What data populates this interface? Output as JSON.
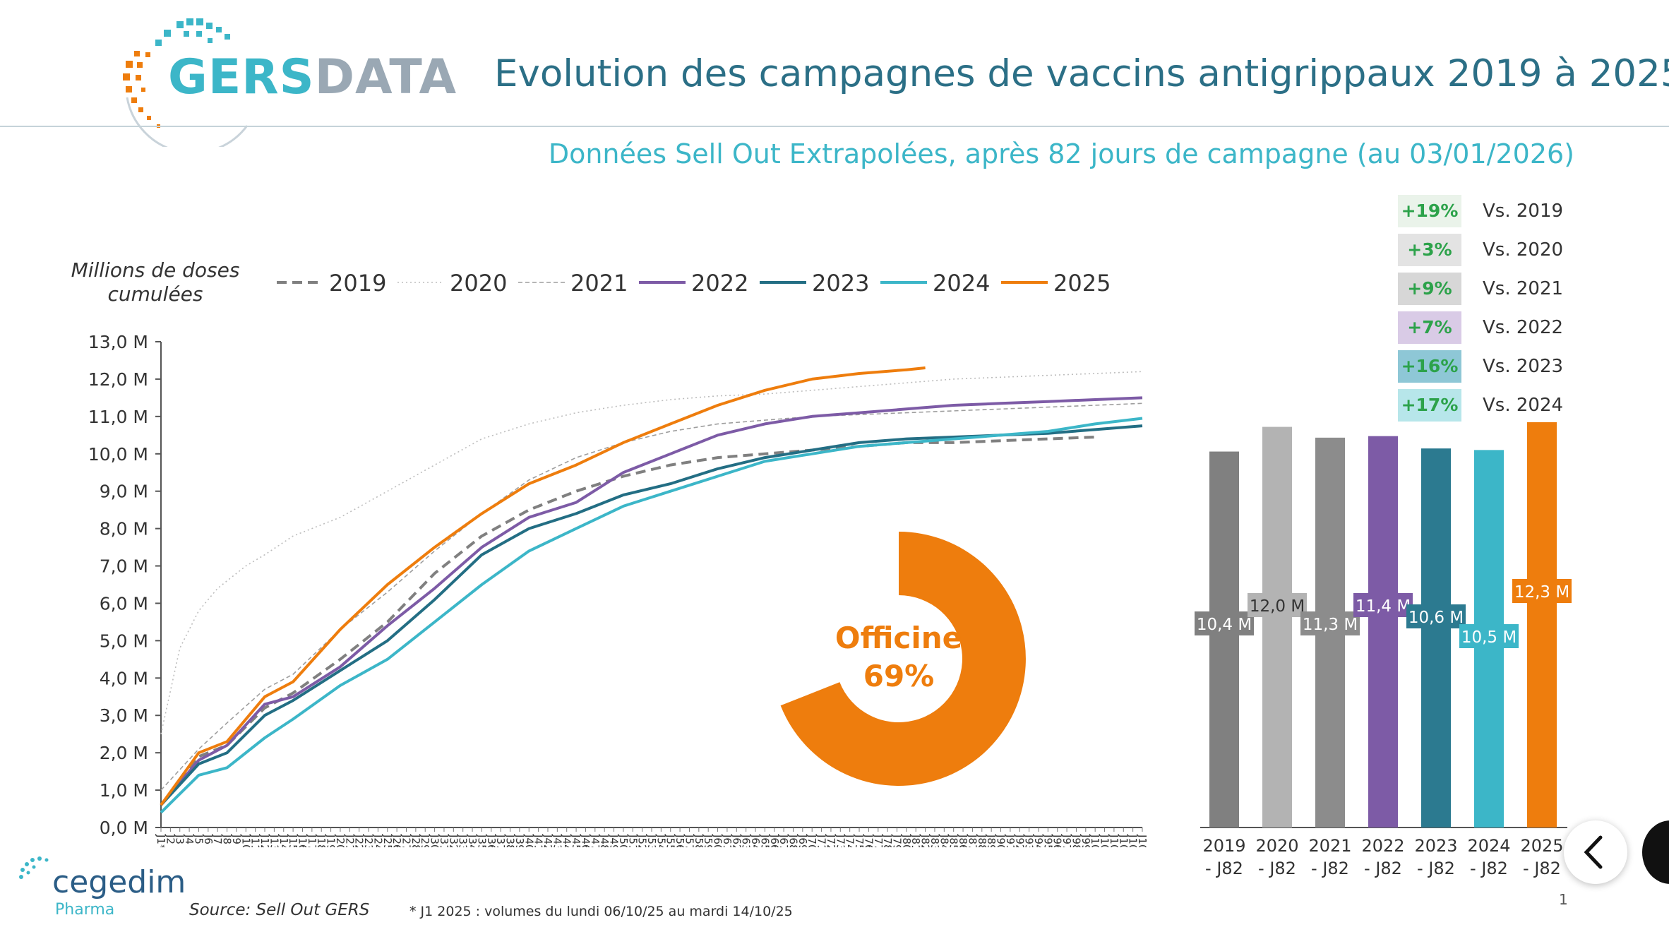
{
  "header": {
    "brand": "GERSDATA",
    "brand_part1": "GERS",
    "brand_part2": "DATA",
    "title": "Evolution des campagnes de vaccins antigrippaux 2019 à 2025",
    "subtitle": "Données Sell Out Extrapolées, après 82 jours de campagne (au 03/01/2026)"
  },
  "comparisons": [
    {
      "badge": "+19%",
      "label": "Vs. 2019",
      "color": "#eaf3ea"
    },
    {
      "badge": "+3%",
      "label": "Vs. 2020",
      "color": "#e3e3e3"
    },
    {
      "badge": "+9%",
      "label": "Vs. 2021",
      "color": "#d7d7d7"
    },
    {
      "badge": "+7%",
      "label": "Vs. 2022",
      "color": "#d9cbe6"
    },
    {
      "badge": "+16%",
      "label": "Vs. 2023",
      "color": "#8ec7d6"
    },
    {
      "badge": "+17%",
      "label": "Vs. 2024",
      "color": "#b7e6ea"
    }
  ],
  "donut": {
    "label": "Officine",
    "value_label": "69%",
    "value": 69,
    "color": "#ee7d0d"
  },
  "footer": {
    "source": "Source: Sell Out GERS",
    "note": "* J1 2025 : volumes du lundi 06/10/25 au mardi 14/10/25",
    "page": "1",
    "cegedim": "cegedim",
    "pharma": "Pharma"
  },
  "icons": [
    "gersdata-logo-icon",
    "cegedim-logo-icon",
    "chevron-left-icon"
  ],
  "chart_data": [
    {
      "type": "line",
      "ylabel": "Millions de doses cumulées",
      "ylim": [
        0,
        13
      ],
      "y_ticks": [
        "0,0 M",
        "1,0 M",
        "2,0 M",
        "3,0 M",
        "4,0 M",
        "5,0 M",
        "6,0 M",
        "7,0 M",
        "8,0 M",
        "9,0 M",
        "10,0 M",
        "11,0 M",
        "12,0 M",
        "13,0 M"
      ],
      "x_tick_first": "J1*",
      "x_tick_prefix": "J",
      "x_range": [
        1,
        105
      ],
      "series": [
        {
          "name": "2019",
          "color": "#808080",
          "dash": "long-dash",
          "points": [
            [
              1,
              0.6
            ],
            [
              5,
              1.9
            ],
            [
              8,
              2.2
            ],
            [
              12,
              3.2
            ],
            [
              15,
              3.6
            ],
            [
              20,
              4.5
            ],
            [
              25,
              5.5
            ],
            [
              30,
              6.8
            ],
            [
              35,
              7.8
            ],
            [
              40,
              8.5
            ],
            [
              45,
              9.0
            ],
            [
              50,
              9.4
            ],
            [
              55,
              9.7
            ],
            [
              60,
              9.9
            ],
            [
              65,
              10.0
            ],
            [
              70,
              10.1
            ],
            [
              75,
              10.2
            ],
            [
              80,
              10.3
            ],
            [
              85,
              10.3
            ],
            [
              90,
              10.35
            ],
            [
              95,
              10.4
            ],
            [
              100,
              10.45
            ]
          ]
        },
        {
          "name": "2020",
          "color": "#bdbdbd",
          "dash": "dot",
          "points": [
            [
              1,
              2.5
            ],
            [
              3,
              4.8
            ],
            [
              5,
              5.8
            ],
            [
              7,
              6.4
            ],
            [
              10,
              7.0
            ],
            [
              12,
              7.3
            ],
            [
              15,
              7.8
            ],
            [
              20,
              8.3
            ],
            [
              25,
              9.0
            ],
            [
              30,
              9.7
            ],
            [
              35,
              10.4
            ],
            [
              40,
              10.8
            ],
            [
              45,
              11.1
            ],
            [
              50,
              11.3
            ],
            [
              55,
              11.45
            ],
            [
              60,
              11.55
            ],
            [
              65,
              11.6
            ],
            [
              70,
              11.7
            ],
            [
              75,
              11.8
            ],
            [
              80,
              11.9
            ],
            [
              85,
              12.0
            ],
            [
              90,
              12.05
            ],
            [
              95,
              12.1
            ],
            [
              100,
              12.15
            ],
            [
              105,
              12.2
            ]
          ]
        },
        {
          "name": "2021",
          "color": "#9e9e9e",
          "dash": "dash",
          "points": [
            [
              1,
              1.0
            ],
            [
              5,
              2.1
            ],
            [
              8,
              2.8
            ],
            [
              12,
              3.7
            ],
            [
              15,
              4.1
            ],
            [
              20,
              5.3
            ],
            [
              25,
              6.3
            ],
            [
              30,
              7.4
            ],
            [
              35,
              8.4
            ],
            [
              40,
              9.3
            ],
            [
              45,
              9.9
            ],
            [
              50,
              10.3
            ],
            [
              55,
              10.6
            ],
            [
              60,
              10.8
            ],
            [
              65,
              10.9
            ],
            [
              70,
              11.0
            ],
            [
              75,
              11.05
            ],
            [
              80,
              11.1
            ],
            [
              85,
              11.15
            ],
            [
              90,
              11.2
            ],
            [
              95,
              11.25
            ],
            [
              100,
              11.3
            ],
            [
              105,
              11.35
            ]
          ]
        },
        {
          "name": "2022",
          "color": "#7d5ba6",
          "dash": "solid",
          "points": [
            [
              1,
              0.6
            ],
            [
              5,
              1.8
            ],
            [
              8,
              2.2
            ],
            [
              12,
              3.3
            ],
            [
              15,
              3.5
            ],
            [
              20,
              4.3
            ],
            [
              25,
              5.4
            ],
            [
              30,
              6.4
            ],
            [
              35,
              7.5
            ],
            [
              40,
              8.3
            ],
            [
              45,
              8.7
            ],
            [
              50,
              9.5
            ],
            [
              55,
              10.0
            ],
            [
              60,
              10.5
            ],
            [
              65,
              10.8
            ],
            [
              70,
              11.0
            ],
            [
              75,
              11.1
            ],
            [
              80,
              11.2
            ],
            [
              85,
              11.3
            ],
            [
              90,
              11.35
            ],
            [
              95,
              11.4
            ],
            [
              100,
              11.45
            ],
            [
              105,
              11.5
            ]
          ]
        },
        {
          "name": "2023",
          "color": "#236e84",
          "dash": "solid",
          "points": [
            [
              1,
              0.6
            ],
            [
              5,
              1.7
            ],
            [
              8,
              2.0
            ],
            [
              12,
              3.0
            ],
            [
              15,
              3.4
            ],
            [
              20,
              4.2
            ],
            [
              25,
              5.0
            ],
            [
              30,
              6.1
            ],
            [
              35,
              7.3
            ],
            [
              40,
              8.0
            ],
            [
              45,
              8.4
            ],
            [
              50,
              8.9
            ],
            [
              55,
              9.2
            ],
            [
              60,
              9.6
            ],
            [
              65,
              9.9
            ],
            [
              70,
              10.1
            ],
            [
              75,
              10.3
            ],
            [
              80,
              10.4
            ],
            [
              85,
              10.45
            ],
            [
              90,
              10.5
            ],
            [
              95,
              10.55
            ],
            [
              100,
              10.65
            ],
            [
              105,
              10.75
            ]
          ]
        },
        {
          "name": "2024",
          "color": "#3cb6c8",
          "dash": "solid",
          "points": [
            [
              1,
              0.4
            ],
            [
              5,
              1.4
            ],
            [
              8,
              1.6
            ],
            [
              12,
              2.4
            ],
            [
              15,
              2.9
            ],
            [
              20,
              3.8
            ],
            [
              25,
              4.5
            ],
            [
              30,
              5.5
            ],
            [
              35,
              6.5
            ],
            [
              40,
              7.4
            ],
            [
              45,
              8.0
            ],
            [
              50,
              8.6
            ],
            [
              55,
              9.0
            ],
            [
              60,
              9.4
            ],
            [
              65,
              9.8
            ],
            [
              70,
              10.0
            ],
            [
              75,
              10.2
            ],
            [
              80,
              10.3
            ],
            [
              85,
              10.4
            ],
            [
              90,
              10.5
            ],
            [
              95,
              10.6
            ],
            [
              100,
              10.8
            ],
            [
              105,
              10.95
            ]
          ]
        },
        {
          "name": "2025",
          "color": "#ee7d0d",
          "dash": "solid",
          "points": [
            [
              1,
              0.6
            ],
            [
              5,
              2.0
            ],
            [
              8,
              2.3
            ],
            [
              12,
              3.5
            ],
            [
              15,
              3.9
            ],
            [
              20,
              5.3
            ],
            [
              25,
              6.5
            ],
            [
              30,
              7.5
            ],
            [
              35,
              8.4
            ],
            [
              40,
              9.2
            ],
            [
              45,
              9.7
            ],
            [
              50,
              10.3
            ],
            [
              55,
              10.8
            ],
            [
              60,
              11.3
            ],
            [
              65,
              11.7
            ],
            [
              70,
              12.0
            ],
            [
              75,
              12.15
            ],
            [
              80,
              12.25
            ],
            [
              82,
              12.3
            ]
          ]
        }
      ]
    },
    {
      "type": "bar",
      "categories": [
        "2019 - J82",
        "2020 - J82",
        "2021 - J82",
        "2022 - J82",
        "2023 - J82",
        "2024 - J82",
        "2025 - J82"
      ],
      "cat_line1": [
        "2019",
        "2020",
        "2021",
        "2022",
        "2023",
        "2024",
        "2025"
      ],
      "cat_line2": [
        "- J82",
        "- J82",
        "- J82",
        "- J82",
        "- J82",
        "- J82",
        "- J82"
      ],
      "values": [
        10.4,
        12.0,
        11.3,
        11.4,
        10.6,
        10.5,
        12.3
      ],
      "value_labels": [
        "10,4 M",
        "12,0 M",
        "11,3 M",
        "11,4 M",
        "10,6 M",
        "10,5 M",
        "12,3 M"
      ],
      "colors": [
        "#808080",
        "#b3b3b3",
        "#8c8c8c",
        "#7d5ba6",
        "#2c7a90",
        "#3cb6c8",
        "#ee7d0d"
      ],
      "label_colors": [
        "#ffffff",
        "#333333",
        "#ffffff",
        "#ffffff",
        "#ffffff",
        "#ffffff",
        "#ffffff"
      ]
    }
  ]
}
